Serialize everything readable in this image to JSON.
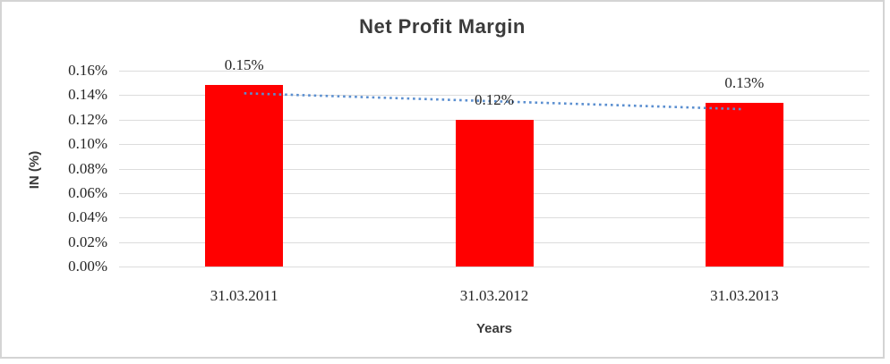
{
  "chart_data": {
    "type": "bar",
    "title": "Net Profit Margin",
    "xlabel": "Years",
    "ylabel": "IN (%)",
    "categories": [
      "31.03.2011",
      "31.03.2012",
      "31.03.2013"
    ],
    "values": [
      0.148,
      0.12,
      0.134
    ],
    "data_labels": [
      "0.15%",
      "0.12%",
      "0.13%"
    ],
    "y_tick_labels": [
      "0.16%",
      "0.14%",
      "0.12%",
      "0.10%",
      "0.08%",
      "0.06%",
      "0.04%",
      "0.02%",
      "0.00%"
    ],
    "ylim": [
      0,
      0.16
    ],
    "y_tick_step": 0.02,
    "grid": true,
    "legend": "none",
    "bar_color": "#ff0000",
    "gridline_color": "#dcdcdc",
    "text_color": "#262626",
    "title_color": "#3b3b3b",
    "trendline": {
      "type": "linear",
      "style": "dotted",
      "color": "#5b8fd0",
      "start_value": 0.1415,
      "end_value": 0.1285
    }
  }
}
